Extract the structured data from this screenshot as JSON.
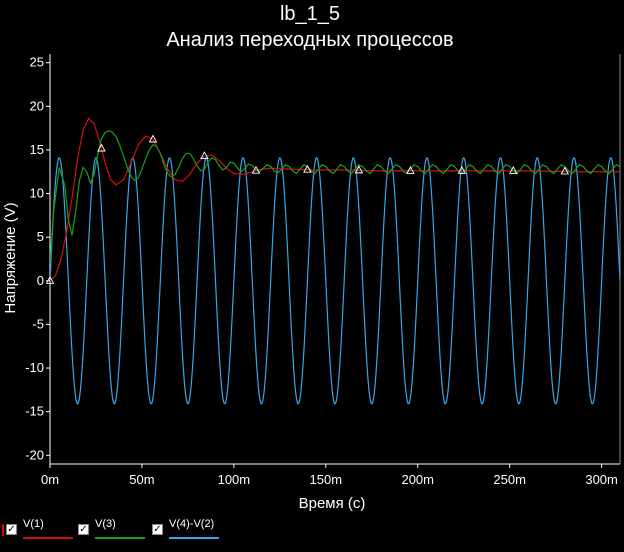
{
  "chart_data": {
    "type": "line",
    "title": "lb_1_5",
    "subtitle": "Анализ переходных процессов",
    "xlabel": "Время (с)",
    "ylabel": "Напряжение (V)",
    "xlim": [
      0,
      0.31
    ],
    "ylim": [
      -21,
      26
    ],
    "x_ticks": [
      0,
      0.05,
      0.1,
      0.15,
      0.2,
      0.25,
      0.3
    ],
    "x_tick_labels": [
      "0m",
      "50m",
      "100m",
      "150m",
      "200m",
      "250m",
      "300m"
    ],
    "y_ticks": [
      -20,
      -15,
      -10,
      -5,
      0,
      5,
      10,
      15,
      20,
      25
    ],
    "y_tick_labels": [
      "-20",
      "-15",
      "-10",
      "-5",
      "0",
      "5",
      "10",
      "15",
      "20",
      "25"
    ],
    "grid": false,
    "legend_position": "bottom-left",
    "series": [
      {
        "name": "V(1)",
        "color": "#d01010",
        "checked": true,
        "marker_x": [
          0,
          0.028,
          0.056,
          0.084,
          0.112,
          0.14,
          0.168,
          0.196,
          0.224,
          0.252,
          0.28
        ],
        "points": [
          [
            0,
            0
          ],
          [
            0.003,
            0.6
          ],
          [
            0.006,
            2.5
          ],
          [
            0.009,
            5.5
          ],
          [
            0.012,
            9.5
          ],
          [
            0.015,
            14
          ],
          [
            0.018,
            17.3
          ],
          [
            0.021,
            18.6
          ],
          [
            0.024,
            18
          ],
          [
            0.027,
            16
          ],
          [
            0.03,
            13.5
          ],
          [
            0.033,
            11.6
          ],
          [
            0.036,
            11
          ],
          [
            0.04,
            11.6
          ],
          [
            0.044,
            13.5
          ],
          [
            0.048,
            15.6
          ],
          [
            0.052,
            16.6
          ],
          [
            0.056,
            16.2
          ],
          [
            0.06,
            14.6
          ],
          [
            0.064,
            12.8
          ],
          [
            0.068,
            11.6
          ],
          [
            0.072,
            11.4
          ],
          [
            0.076,
            12.2
          ],
          [
            0.08,
            13.5
          ],
          [
            0.084,
            14.3
          ],
          [
            0.088,
            14.4
          ],
          [
            0.092,
            13.8
          ],
          [
            0.096,
            12.9
          ],
          [
            0.1,
            12.3
          ],
          [
            0.105,
            12.2
          ],
          [
            0.11,
            12.5
          ],
          [
            0.115,
            12.8
          ],
          [
            0.12,
            12.9
          ],
          [
            0.13,
            12.8
          ],
          [
            0.145,
            12.7
          ],
          [
            0.16,
            12.7
          ],
          [
            0.18,
            12.6
          ],
          [
            0.2,
            12.6
          ],
          [
            0.23,
            12.6
          ],
          [
            0.26,
            12.6
          ],
          [
            0.29,
            12.5
          ],
          [
            0.31,
            12.5
          ]
        ]
      },
      {
        "name": "V(3)",
        "color": "#18a018",
        "checked": true,
        "marker_x": [
          0,
          0.028,
          0.056,
          0.084,
          0.112,
          0.14,
          0.168,
          0.196,
          0.224,
          0.252,
          0.28
        ],
        "points": [
          [
            0,
            2
          ],
          [
            0.002,
            8
          ],
          [
            0.005,
            13
          ],
          [
            0.008,
            11
          ],
          [
            0.01,
            7
          ],
          [
            0.012,
            5.2
          ],
          [
            0.014,
            8
          ],
          [
            0.016,
            11.5
          ],
          [
            0.018,
            13
          ],
          [
            0.02,
            12.5
          ],
          [
            0.022,
            11.2
          ],
          [
            0.024,
            12.2
          ],
          [
            0.026,
            14.5
          ],
          [
            0.028,
            16.3
          ],
          [
            0.03,
            17
          ],
          [
            0.032,
            17.2
          ],
          [
            0.034,
            17
          ],
          [
            0.036,
            16.5
          ],
          [
            0.038,
            15.5
          ],
          [
            0.04,
            14.3
          ],
          [
            0.042,
            13
          ],
          [
            0.044,
            12
          ],
          [
            0.046,
            11.5
          ],
          [
            0.048,
            11.8
          ],
          [
            0.05,
            12.8
          ],
          [
            0.052,
            14
          ],
          [
            0.054,
            15
          ],
          [
            0.056,
            15.6
          ],
          [
            0.058,
            15.4
          ],
          [
            0.06,
            14.6
          ],
          [
            0.062,
            13.3
          ],
          [
            0.064,
            12.3
          ],
          [
            0.066,
            11.9
          ],
          [
            0.068,
            12.2
          ],
          [
            0.07,
            13
          ],
          [
            0.072,
            14
          ],
          [
            0.074,
            14.6
          ],
          [
            0.076,
            14.6
          ],
          [
            0.078,
            14
          ],
          [
            0.08,
            13.2
          ],
          [
            0.082,
            12.6
          ],
          [
            0.084,
            12.8
          ],
          [
            0.086,
            13.6
          ],
          [
            0.088,
            14.1
          ],
          [
            0.09,
            13.9
          ],
          [
            0.092,
            13.2
          ],
          [
            0.094,
            12.7
          ],
          [
            0.096,
            13
          ],
          [
            0.098,
            13.6
          ],
          [
            0.1,
            13.5
          ],
          [
            0.102,
            12.9
          ],
          [
            0.104,
            12.5
          ],
          [
            0.106,
            12.9
          ],
          [
            0.108,
            13.4
          ],
          [
            0.11,
            13.2
          ],
          [
            0.112,
            12.7
          ],
          [
            0.114,
            12.5
          ],
          [
            0.116,
            12.9
          ],
          [
            0.118,
            13.3
          ],
          [
            0.12,
            13.1
          ],
          [
            0.122,
            12.6
          ],
          [
            0.124,
            12.4
          ],
          [
            0.126,
            12.8
          ],
          [
            0.128,
            13.3
          ],
          [
            0.13,
            13.1
          ],
          [
            0.132,
            12.6
          ],
          [
            0.134,
            12.3
          ],
          [
            0.136,
            12.8
          ],
          [
            0.138,
            13.3
          ],
          [
            0.14,
            13.1
          ],
          [
            0.142,
            12.6
          ],
          [
            0.144,
            12.3
          ],
          [
            0.146,
            12.8
          ],
          [
            0.148,
            13.3
          ],
          [
            0.15,
            13.1
          ],
          [
            0.152,
            12.6
          ],
          [
            0.154,
            12.3
          ],
          [
            0.156,
            12.8
          ],
          [
            0.158,
            13.3
          ],
          [
            0.16,
            13.1
          ],
          [
            0.162,
            12.6
          ],
          [
            0.164,
            12.3
          ],
          [
            0.166,
            12.8
          ],
          [
            0.168,
            13.3
          ],
          [
            0.17,
            13.1
          ],
          [
            0.172,
            12.6
          ],
          [
            0.174,
            12.3
          ],
          [
            0.176,
            12.8
          ],
          [
            0.178,
            13.3
          ],
          [
            0.18,
            13.1
          ],
          [
            0.182,
            12.6
          ],
          [
            0.184,
            12.3
          ],
          [
            0.186,
            12.8
          ],
          [
            0.188,
            13.3
          ],
          [
            0.19,
            13.1
          ],
          [
            0.192,
            12.6
          ],
          [
            0.194,
            12.3
          ],
          [
            0.196,
            12.8
          ],
          [
            0.198,
            13.3
          ],
          [
            0.2,
            13.1
          ],
          [
            0.202,
            12.6
          ],
          [
            0.204,
            12.3
          ],
          [
            0.206,
            12.8
          ],
          [
            0.208,
            13.3
          ],
          [
            0.21,
            13.1
          ],
          [
            0.212,
            12.6
          ],
          [
            0.214,
            12.3
          ],
          [
            0.216,
            12.8
          ],
          [
            0.218,
            13.3
          ],
          [
            0.22,
            13.1
          ],
          [
            0.222,
            12.6
          ],
          [
            0.224,
            12.3
          ],
          [
            0.226,
            12.8
          ],
          [
            0.228,
            13.3
          ],
          [
            0.23,
            13.1
          ],
          [
            0.232,
            12.6
          ],
          [
            0.234,
            12.3
          ],
          [
            0.236,
            12.8
          ],
          [
            0.238,
            13.3
          ],
          [
            0.24,
            13.1
          ],
          [
            0.242,
            12.6
          ],
          [
            0.244,
            12.3
          ],
          [
            0.246,
            12.8
          ],
          [
            0.248,
            13.3
          ],
          [
            0.25,
            13.1
          ],
          [
            0.252,
            12.6
          ],
          [
            0.254,
            12.3
          ],
          [
            0.256,
            12.8
          ],
          [
            0.258,
            13.3
          ],
          [
            0.26,
            13.1
          ],
          [
            0.262,
            12.6
          ],
          [
            0.264,
            12.3
          ],
          [
            0.266,
            12.8
          ],
          [
            0.268,
            13.3
          ],
          [
            0.27,
            13.1
          ],
          [
            0.272,
            12.6
          ],
          [
            0.274,
            12.3
          ],
          [
            0.276,
            12.8
          ],
          [
            0.278,
            13.3
          ],
          [
            0.28,
            13.1
          ],
          [
            0.282,
            12.6
          ],
          [
            0.284,
            12.3
          ],
          [
            0.286,
            12.8
          ],
          [
            0.288,
            13.3
          ],
          [
            0.29,
            13.1
          ],
          [
            0.292,
            12.6
          ],
          [
            0.294,
            12.3
          ],
          [
            0.296,
            12.8
          ],
          [
            0.298,
            13.3
          ],
          [
            0.3,
            13.1
          ],
          [
            0.302,
            12.6
          ],
          [
            0.304,
            12.3
          ],
          [
            0.306,
            12.8
          ],
          [
            0.308,
            13.3
          ],
          [
            0.31,
            13.1
          ]
        ]
      },
      {
        "name": "V(4)-V(2)",
        "color": "#3aa6e8",
        "checked": true,
        "amplitude": 14.1,
        "frequency_hz": 50,
        "phase_deg": 0,
        "x_start": 0,
        "x_end": 0.31
      }
    ]
  }
}
